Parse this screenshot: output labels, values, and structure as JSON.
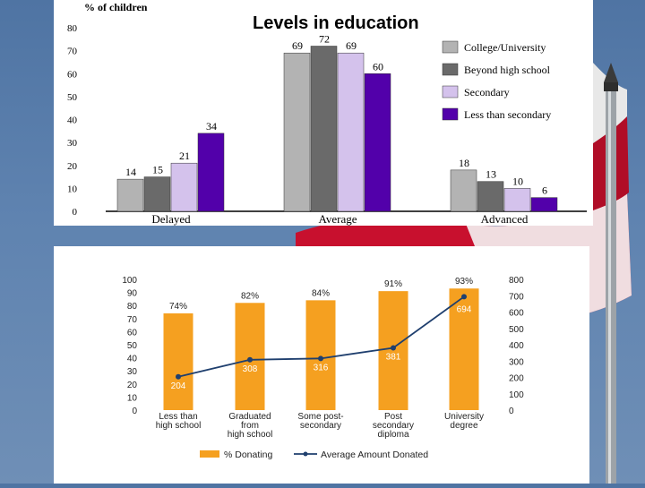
{
  "colors": {
    "college": "#b3b3b3",
    "beyond": "#6a6a6a",
    "secondary": "#d4c2ec",
    "less": "#5200aa",
    "orange": "#f5a020",
    "navy": "#1f3f6e",
    "flag_red": "#c8102e"
  },
  "chart_data": [
    {
      "type": "bar",
      "title": "Levels in education",
      "ylabel": "% of children",
      "xlabel": "",
      "ylim": [
        0,
        80
      ],
      "yticks": [
        0,
        10,
        20,
        30,
        40,
        50,
        60,
        70,
        80
      ],
      "categories": [
        "Delayed",
        "Average",
        "Advanced"
      ],
      "series": [
        {
          "name": "College/University",
          "color_key": "college",
          "values": [
            14,
            69,
            18
          ]
        },
        {
          "name": "Beyond high school",
          "color_key": "beyond",
          "values": [
            15,
            72,
            13
          ]
        },
        {
          "name": "Secondary",
          "color_key": "secondary",
          "values": [
            21,
            69,
            10
          ]
        },
        {
          "name": "Less than secondary",
          "color_key": "less",
          "values": [
            34,
            60,
            6
          ]
        }
      ],
      "legend_position": "right",
      "grid": false
    },
    {
      "type": "bar-line",
      "title": "",
      "categories": [
        [
          "Less than",
          "high school"
        ],
        [
          "Graduated",
          "from",
          "high school"
        ],
        [
          "Some post-",
          "secondary"
        ],
        [
          "Post",
          "secondary",
          "diploma"
        ],
        [
          "University",
          "degree"
        ]
      ],
      "bars": {
        "name": "% Donating",
        "values": [
          74,
          82,
          84,
          91,
          93
        ],
        "labels": [
          "74%",
          "82%",
          "84%",
          "91%",
          "93%"
        ],
        "ylim": [
          0,
          100
        ],
        "yticks": [
          0,
          10,
          20,
          30,
          40,
          50,
          60,
          70,
          80,
          90,
          100
        ]
      },
      "line": {
        "name": "Average Amount Donated",
        "values": [
          204,
          308,
          316,
          381,
          694
        ],
        "labels": [
          "204",
          "308",
          "316",
          "381",
          "694"
        ],
        "ylim": [
          0,
          800
        ],
        "yticks": [
          0,
          100,
          200,
          300,
          400,
          500,
          600,
          700,
          800
        ]
      },
      "legend_position": "bottom",
      "grid": false
    }
  ]
}
